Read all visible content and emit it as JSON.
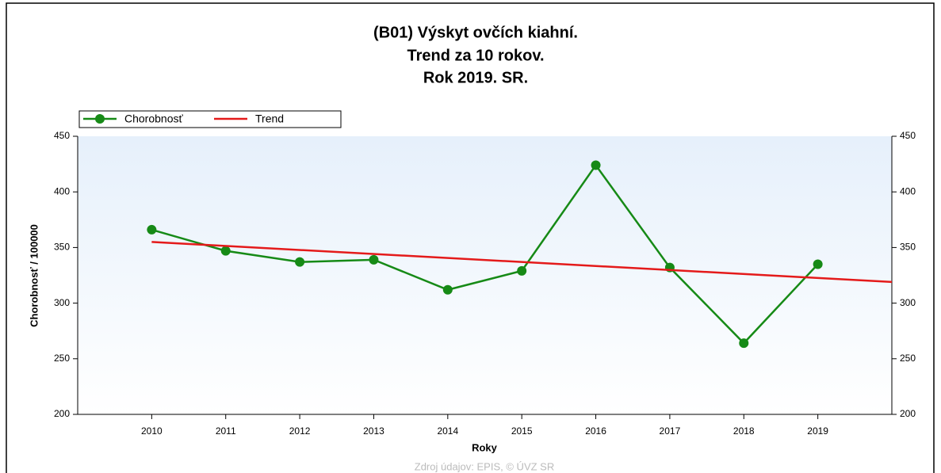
{
  "chart_data": {
    "type": "line",
    "title": "(B01) Výskyt ovčích kiahní.",
    "subtitle": [
      "Trend za 10 rokov.",
      "Rok 2019. SR."
    ],
    "x_label": "Roky",
    "y_label": "Chorobnosť / 100000",
    "source": "Zdroj údajov: EPIS, © ÚVZ SR",
    "xlim": [
      2009,
      2020
    ],
    "xticks": [
      2010,
      2011,
      2012,
      2013,
      2014,
      2015,
      2016,
      2017,
      2018,
      2019
    ],
    "ylim": [
      200,
      450
    ],
    "yticks": [
      200,
      250,
      300,
      350,
      400,
      450
    ],
    "y2lim": [
      200,
      450
    ],
    "y2ticks": [
      200,
      250,
      300,
      350,
      400,
      450
    ],
    "series": [
      {
        "name": "Chorobnosť",
        "color": "#168a16",
        "markers": true,
        "x": [
          2010,
          2011,
          2012,
          2013,
          2014,
          2015,
          2016,
          2017,
          2018,
          2019
        ],
        "values": [
          366,
          347,
          337,
          339,
          312,
          329,
          424,
          332,
          264,
          335
        ]
      },
      {
        "name": "Trend",
        "color": "#e41a1a",
        "markers": false,
        "x": [
          2010,
          2020
        ],
        "values": [
          355,
          319
        ]
      }
    ]
  }
}
